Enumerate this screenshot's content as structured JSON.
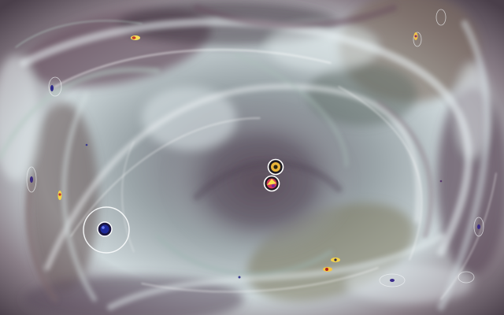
{
  "scene": {
    "palette": {
      "deep": "#2f2733",
      "mauve": "#6e5566",
      "sage": "#7d8a73",
      "teal": "#7fa3a0",
      "silver": "#c9d3d6",
      "highlight": "#f4f8fb",
      "olive": "#8a8266"
    }
  },
  "items": [
    {
      "kind": "ring-small-yellow",
      "icon": "gold-orb-icon"
    },
    {
      "kind": "ring-small-multicolor",
      "icon": "candy-orb-icon"
    },
    {
      "kind": "player-blue-orb",
      "icon": "blue-orb-icon"
    },
    {
      "kind": "tiny-seed",
      "icon": "seed-icon"
    }
  ]
}
